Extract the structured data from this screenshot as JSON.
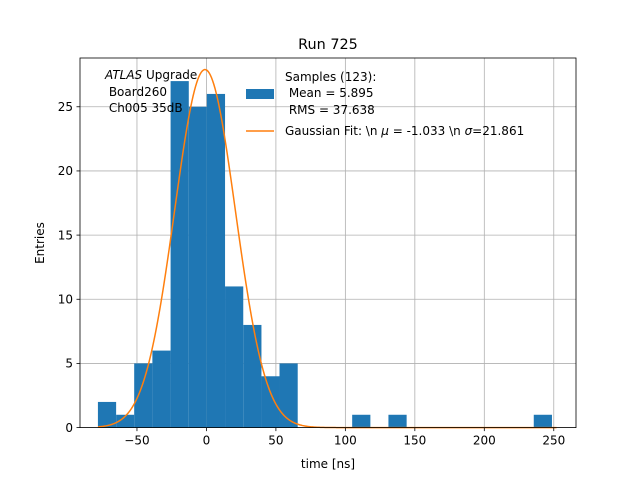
{
  "chart_data": {
    "type": "histogram",
    "title": "Run 725",
    "xlabel": "time [ns]",
    "ylabel": "Entries",
    "xlim": [
      -91,
      266
    ],
    "ylim": [
      0,
      28.8
    ],
    "xticks": [
      -50,
      0,
      50,
      100,
      150,
      200,
      250
    ],
    "yticks": [
      0,
      5,
      10,
      15,
      20,
      25
    ],
    "grid": true,
    "annotation": {
      "experiment_italic": "ATLAS",
      "experiment_rest": " Upgrade",
      "board": " Board260",
      "channel": " Ch005 35dB"
    },
    "histogram": {
      "name_lines": [
        "Samples (123):",
        " Mean = 5.895",
        " RMS = 37.638"
      ],
      "color": "#1f77b4",
      "bin_edges": [
        -78.1,
        -65.0,
        -52.0,
        -38.9,
        -25.8,
        -12.7,
        0.3,
        13.4,
        26.5,
        39.6,
        52.6,
        65.7,
        78.8,
        91.8,
        104.9,
        118.0,
        131.0,
        144.1,
        157.2,
        170.3,
        183.3,
        196.4,
        209.5,
        222.5,
        235.6,
        248.7
      ],
      "counts": [
        2,
        1,
        5,
        6,
        27,
        25,
        26,
        11,
        8,
        4,
        5,
        0,
        0,
        0,
        1,
        0,
        1,
        0,
        0,
        0,
        0,
        0,
        0,
        0,
        1
      ]
    },
    "fit": {
      "name": "Gaussian Fit: \\n $\\mu$ = -1.033 \\n $\\sigma$=21.861",
      "legend_parts": [
        "Gaussian Fit: \\n ",
        "μ",
        " = -1.033 \\n ",
        "σ",
        "=21.861"
      ],
      "type": "gaussian",
      "mu": -1.033,
      "sigma": 21.861,
      "amplitude": 27.9,
      "x_range": [
        -78,
        252
      ],
      "color": "#ff7f0e"
    },
    "legend_position": "upper-right"
  }
}
